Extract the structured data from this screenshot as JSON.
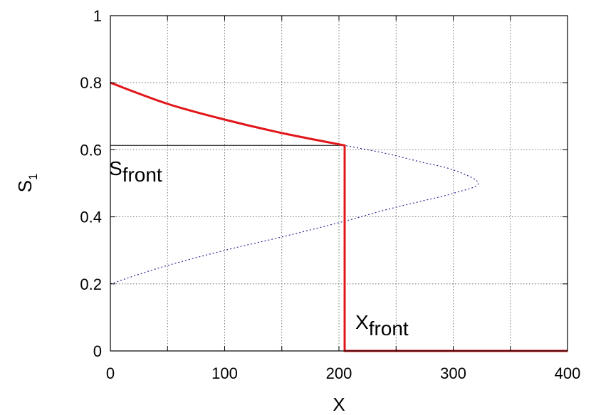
{
  "chart_data": {
    "type": "line",
    "xlabel": "X",
    "ylabel": {
      "base": "S",
      "sub": "1"
    },
    "xlim": [
      0,
      400
    ],
    "ylim": [
      0,
      1
    ],
    "xticks": [
      0,
      100,
      200,
      300,
      400
    ],
    "yticks": [
      0,
      0.2,
      0.4,
      0.6,
      0.8,
      1
    ],
    "xtick_labels": [
      "0",
      "100",
      "200",
      "300",
      "400"
    ],
    "ytick_labels": [
      "0",
      "0.2",
      "0.4",
      "0.6",
      "0.8",
      "1"
    ],
    "xminor": [
      50,
      150,
      250,
      350
    ],
    "grid": true,
    "front": {
      "x": 205,
      "s": 0.613
    },
    "series": [
      {
        "style": "dotted",
        "color": "#1a1a8c",
        "points": [
          [
            0,
            0.2
          ],
          [
            45,
            0.25
          ],
          [
            100,
            0.3
          ],
          [
            150,
            0.34
          ],
          [
            205,
            0.387
          ],
          [
            240,
            0.42
          ],
          [
            270,
            0.445
          ],
          [
            300,
            0.47
          ],
          [
            322,
            0.5
          ],
          [
            300,
            0.54
          ],
          [
            270,
            0.565
          ],
          [
            240,
            0.59
          ],
          [
            205,
            0.613
          ]
        ]
      },
      {
        "style": "solid",
        "color": "#e0161b",
        "points": [
          [
            0,
            0.8
          ],
          [
            50,
            0.737
          ],
          [
            100,
            0.69
          ],
          [
            150,
            0.65
          ],
          [
            205,
            0.613
          ],
          [
            205,
            0
          ],
          [
            400,
            0
          ]
        ]
      }
    ],
    "reference_line": {
      "color": "#000000",
      "x": [
        0,
        205
      ],
      "y": 0.613
    },
    "annotations": [
      {
        "id": "s-front",
        "base": "S",
        "sub": "front",
        "x": 0,
        "y": 0.613
      },
      {
        "id": "x-front",
        "base": "X",
        "sub": "front",
        "x": 205,
        "y": 0
      }
    ]
  }
}
